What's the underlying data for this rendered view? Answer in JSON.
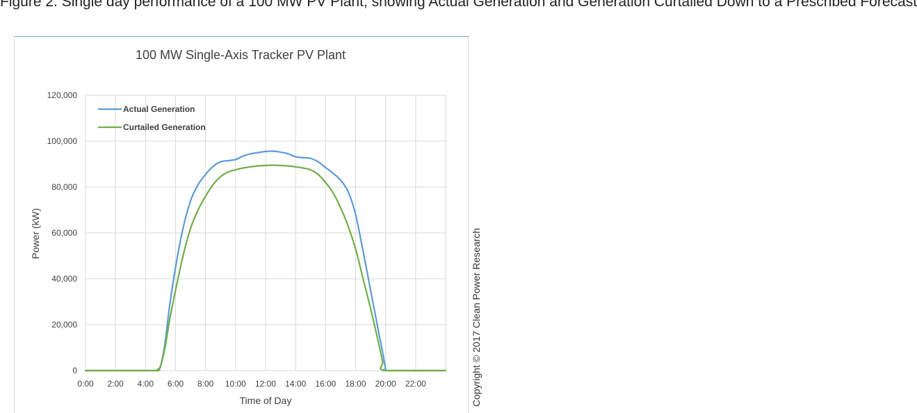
{
  "caption": {
    "text": "Figure 2. Single day performance of a 100 MW PV Plant, showing Actual Generation and Generation Curtailed Down to a Prescribed Forecast"
  },
  "copyright": "Copyright © 2017 Clean Power Research",
  "colors": {
    "actual": "#5b9bd5",
    "curtailed": "#70ad47",
    "grid": "#d9d9d9",
    "caption_rule": "#6fa8d6"
  },
  "chart_data": {
    "type": "line",
    "title": "100 MW Single-Axis Tracker PV Plant",
    "xlabel": "Time of Day",
    "ylabel": "Power (kW)",
    "xlim": [
      0,
      24
    ],
    "ylim": [
      0,
      120000
    ],
    "x_tick_labels": [
      "0:00",
      "2:00",
      "4:00",
      "6:00",
      "8:00",
      "10:00",
      "12:00",
      "14:00",
      "16:00",
      "18:00",
      "20:00",
      "22:00"
    ],
    "y_tick_labels": [
      "0",
      "20,000",
      "40,000",
      "60,000",
      "80,000",
      "100,000",
      "120,000"
    ],
    "grid": true,
    "legend_position": "top-left",
    "series": [
      {
        "name": "Actual Generation",
        "color": "#5b9bd5",
        "points": [
          [
            0,
            0
          ],
          [
            4.5,
            0
          ],
          [
            4.8,
            500
          ],
          [
            5.0,
            2000
          ],
          [
            5.3,
            12000
          ],
          [
            5.6,
            28000
          ],
          [
            6.0,
            45000
          ],
          [
            6.5,
            62000
          ],
          [
            7.0,
            74000
          ],
          [
            7.5,
            81000
          ],
          [
            8.0,
            85500
          ],
          [
            8.5,
            89000
          ],
          [
            9.0,
            91000
          ],
          [
            9.5,
            91500
          ],
          [
            10.0,
            92000
          ],
          [
            10.5,
            93500
          ],
          [
            11.0,
            94500
          ],
          [
            11.5,
            95000
          ],
          [
            12.0,
            95500
          ],
          [
            12.5,
            95600
          ],
          [
            13.0,
            95200
          ],
          [
            13.5,
            94500
          ],
          [
            14.0,
            93200
          ],
          [
            14.5,
            92800
          ],
          [
            15.0,
            92500
          ],
          [
            15.5,
            91000
          ],
          [
            16.0,
            88500
          ],
          [
            16.5,
            86000
          ],
          [
            17.0,
            83000
          ],
          [
            17.5,
            78000
          ],
          [
            18.0,
            68000
          ],
          [
            18.5,
            52000
          ],
          [
            19.0,
            35000
          ],
          [
            19.5,
            18000
          ],
          [
            19.8,
            8000
          ],
          [
            20.0,
            1000
          ],
          [
            20.1,
            0
          ],
          [
            24,
            0
          ]
        ]
      },
      {
        "name": "Curtailed Generation",
        "color": "#70ad47",
        "points": [
          [
            0,
            0
          ],
          [
            4.5,
            0
          ],
          [
            4.8,
            500
          ],
          [
            5.0,
            2000
          ],
          [
            5.3,
            10000
          ],
          [
            5.6,
            22000
          ],
          [
            6.0,
            35000
          ],
          [
            6.5,
            50000
          ],
          [
            7.0,
            62000
          ],
          [
            7.5,
            70000
          ],
          [
            8.0,
            76000
          ],
          [
            8.5,
            81000
          ],
          [
            9.0,
            84500
          ],
          [
            9.5,
            86500
          ],
          [
            10.0,
            87500
          ],
          [
            10.5,
            88300
          ],
          [
            11.0,
            88800
          ],
          [
            11.5,
            89200
          ],
          [
            12.0,
            89400
          ],
          [
            12.5,
            89500
          ],
          [
            13.0,
            89400
          ],
          [
            13.5,
            89200
          ],
          [
            14.0,
            88800
          ],
          [
            14.5,
            88300
          ],
          [
            15.0,
            87500
          ],
          [
            15.5,
            85500
          ],
          [
            16.0,
            82000
          ],
          [
            16.5,
            77500
          ],
          [
            17.0,
            71000
          ],
          [
            17.5,
            63000
          ],
          [
            18.0,
            53000
          ],
          [
            18.5,
            40000
          ],
          [
            19.0,
            27000
          ],
          [
            19.5,
            13000
          ],
          [
            19.8,
            4000
          ],
          [
            20.0,
            0
          ],
          [
            24,
            0
          ]
        ]
      }
    ]
  }
}
